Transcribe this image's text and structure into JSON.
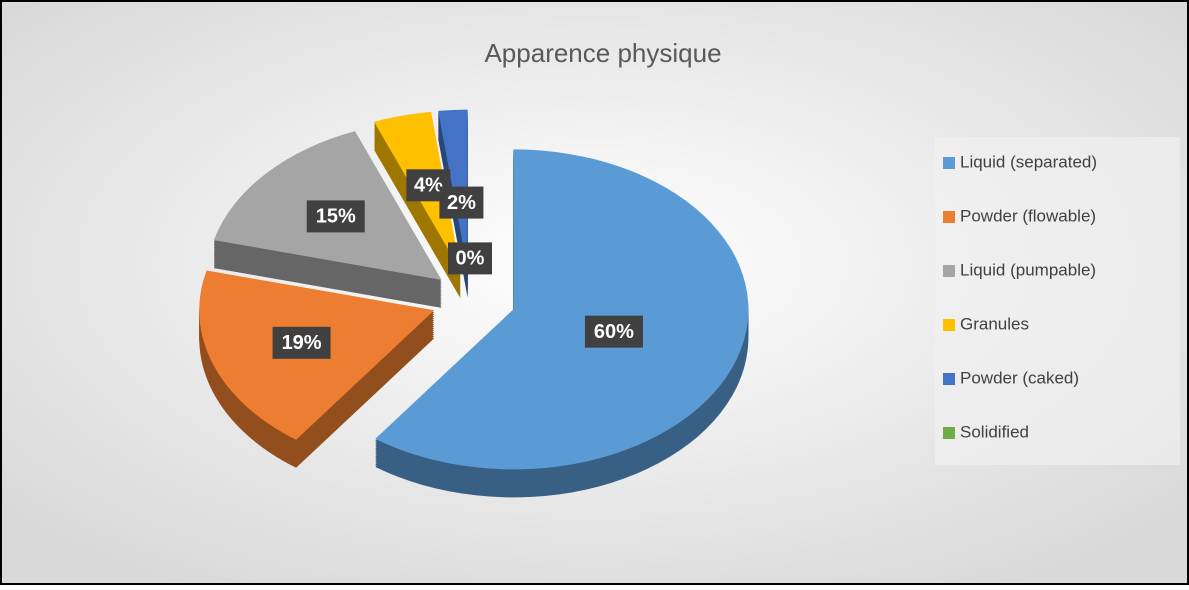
{
  "chart_data": {
    "type": "pie",
    "title": "Apparence physique",
    "categories": [
      "Liquid (separated)",
      "Powder (flowable)",
      "Liquid (pumpable)",
      "Granules",
      "Powder (caked)",
      "Solidified"
    ],
    "values": [
      60,
      19,
      15,
      4,
      2,
      0
    ],
    "value_labels": [
      "60%",
      "19%",
      "15%",
      "4%",
      "2%",
      "0%"
    ],
    "colors": [
      "#5b9bd5",
      "#ed7d31",
      "#a5a5a5",
      "#ffc000",
      "#4472c4",
      "#70ad47"
    ],
    "legend": "right"
  }
}
